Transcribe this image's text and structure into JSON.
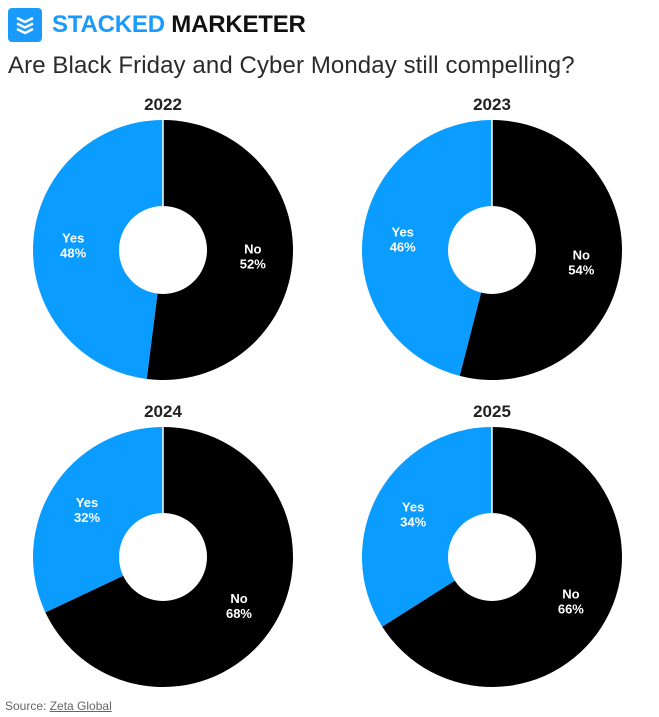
{
  "brand": {
    "name_accent": "STACKED",
    "name_rest": "MARKETER",
    "accent_color": "#1a9bfc",
    "logo_icon": "stacked-layers-icon"
  },
  "headline": "Are Black Friday and Cyber Monday still compelling?",
  "chart_data": [
    {
      "type": "pie",
      "title": "2022",
      "donut": true,
      "slices": [
        {
          "label": "Yes",
          "value": 48,
          "value_label": "48%",
          "color": "#0a9cff"
        },
        {
          "label": "No",
          "value": 52,
          "value_label": "52%",
          "color": "#000000"
        }
      ]
    },
    {
      "type": "pie",
      "title": "2023",
      "donut": true,
      "slices": [
        {
          "label": "Yes",
          "value": 46,
          "value_label": "46%",
          "color": "#0a9cff"
        },
        {
          "label": "No",
          "value": 54,
          "value_label": "54%",
          "color": "#000000"
        }
      ]
    },
    {
      "type": "pie",
      "title": "2024",
      "donut": true,
      "slices": [
        {
          "label": "Yes",
          "value": 32,
          "value_label": "32%",
          "color": "#0a9cff"
        },
        {
          "label": "No",
          "value": 68,
          "value_label": "68%",
          "color": "#000000"
        }
      ]
    },
    {
      "type": "pie",
      "title": "2025",
      "donut": true,
      "slices": [
        {
          "label": "Yes",
          "value": 34,
          "value_label": "34%",
          "color": "#0a9cff"
        },
        {
          "label": "No",
          "value": 66,
          "value_label": "66%",
          "color": "#000000"
        }
      ]
    }
  ],
  "footer": {
    "source_label": "Source:",
    "source_link": "Zeta Global"
  }
}
